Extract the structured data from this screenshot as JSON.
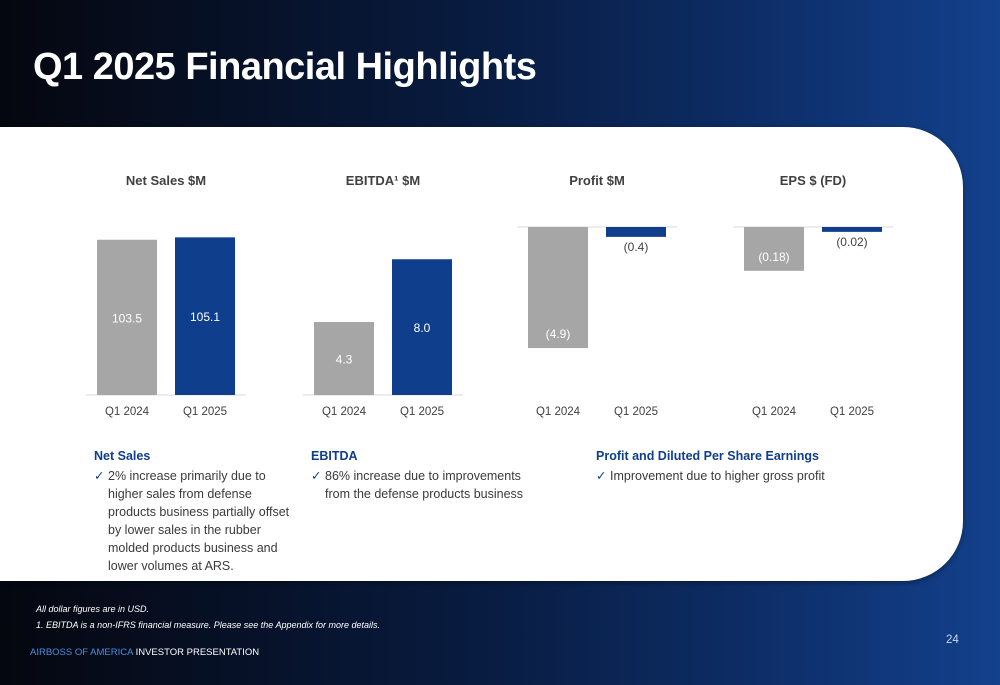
{
  "slide": {
    "title": "Q1 2025 Financial Highlights",
    "page_number": "24"
  },
  "chart_data": [
    {
      "type": "bar",
      "title": "Net Sales $M",
      "categories": [
        "Q1 2024",
        "Q1 2025"
      ],
      "values": [
        103.5,
        105.1
      ],
      "labels": [
        "103.5",
        "105.1"
      ],
      "colors": [
        "#a6a6a6",
        "#0f3e8c"
      ],
      "ylim": [
        0,
        112
      ]
    },
    {
      "type": "bar",
      "title": "EBITDA¹ $M",
      "categories": [
        "Q1 2024",
        "Q1 2025"
      ],
      "values": [
        4.3,
        8.0
      ],
      "labels": [
        "4.3",
        "8.0"
      ],
      "colors": [
        "#a6a6a6",
        "#0f3e8c"
      ],
      "ylim": [
        0,
        9.9
      ]
    },
    {
      "type": "bar",
      "title": "Profit $M",
      "categories": [
        "Q1 2024",
        "Q1 2025"
      ],
      "values": [
        -4.9,
        -0.4
      ],
      "labels": [
        "(4.9)",
        "(0.4)"
      ],
      "colors": [
        "#a6a6a6",
        "#0f3e8c"
      ],
      "ylim": [
        -6.8,
        0
      ]
    },
    {
      "type": "bar",
      "title": "EPS $ (FD)",
      "categories": [
        "Q1 2024",
        "Q1 2025"
      ],
      "values": [
        -0.18,
        -0.02
      ],
      "labels": [
        "(0.18)",
        "(0.02)"
      ],
      "colors": [
        "#a6a6a6",
        "#0f3e8c"
      ],
      "ylim": [
        -0.69,
        0
      ]
    }
  ],
  "commentary": [
    {
      "heading": "Net Sales",
      "bullets": [
        "2% increase primarily due to higher sales from defense products business partially offset by lower sales in the rubber molded products business and lower volumes at ARS."
      ]
    },
    {
      "heading": "EBITDA",
      "bullets": [
        "86% increase due to improvements from the defense products business"
      ]
    },
    {
      "heading": "Profit and Diluted Per Share Earnings",
      "bullets": [
        "Improvement due to higher gross profit"
      ]
    }
  ],
  "footnotes": {
    "line1": "All dollar figures are in USD.",
    "line2": "1. EBITDA is a non-IFRS financial measure. Please see the Appendix for more details."
  },
  "brand": {
    "company": "AIRBOSS OF AMERICA",
    "suffix": " INVESTOR PRESENTATION"
  }
}
